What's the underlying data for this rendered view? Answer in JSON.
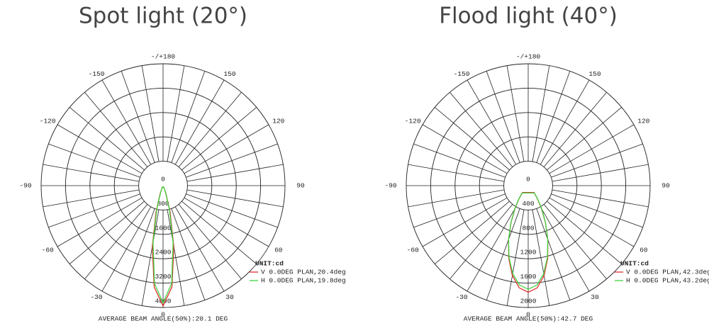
{
  "chart_data": [
    {
      "type": "polar",
      "title": "Spot light (20°)",
      "theta": [
        -25,
        -20,
        -15,
        -10,
        -5,
        0,
        5,
        10,
        15,
        20,
        25
      ],
      "series": [
        {
          "name": "V 0.0DEG PLAN,20.4deg",
          "color": "#e03030",
          "values": [
            62,
            275,
            885,
            2030,
            3340,
            3950,
            3340,
            2030,
            885,
            275,
            62
          ]
        },
        {
          "name": "H 0.0DEG PLAN,19.8deg",
          "color": "#3ed43e",
          "values": [
            50,
            227,
            785,
            1900,
            3225,
            3850,
            3225,
            1900,
            785,
            227,
            50
          ]
        }
      ],
      "rlim": [
        0,
        4000
      ],
      "rticks": [
        0,
        800,
        1600,
        2400,
        3200,
        4000
      ],
      "thetaticks": [
        {
          "value": 180,
          "label": "-/+180"
        },
        -150,
        150,
        -120,
        120,
        -90,
        90,
        -60,
        60,
        -30,
        30,
        0
      ],
      "unit_label": "UNIT:cd",
      "footnote": "AVERAGE BEAM ANGLE(50%):20.1 DEG"
    },
    {
      "type": "polar",
      "title": "Flood light (40°)",
      "theta": [
        -40,
        -35,
        -30,
        -25,
        -20,
        -15,
        -10,
        -5,
        0,
        5,
        10,
        15,
        20,
        25,
        30,
        35,
        40
      ],
      "series": [
        {
          "name": "V 0.0DEG PLAN,42.3deg",
          "color": "#e03030",
          "values": [
            147,
            263,
            434,
            665,
            942,
            1234,
            1498,
            1684,
            1750,
            1684,
            1498,
            1234,
            942,
            665,
            434,
            263,
            147
          ]
        },
        {
          "name": "H 0.0DEG PLAN,43.2deg",
          "color": "#3ed43e",
          "values": [
            158,
            276,
            447,
            672,
            938,
            1217,
            1465,
            1639,
            1700,
            1639,
            1465,
            1217,
            938,
            672,
            447,
            276,
            158
          ]
        }
      ],
      "rlim": [
        0,
        2000
      ],
      "rticks": [
        0,
        400,
        800,
        1200,
        1600,
        2000
      ],
      "thetaticks": [
        {
          "value": 180,
          "label": "-/+180"
        },
        -150,
        150,
        -120,
        120,
        -90,
        90,
        -60,
        60,
        -30,
        30,
        0
      ],
      "unit_label": "UNIT:cd",
      "footnote": "AVERAGE BEAM ANGLE(50%):42.7 DEG"
    }
  ]
}
